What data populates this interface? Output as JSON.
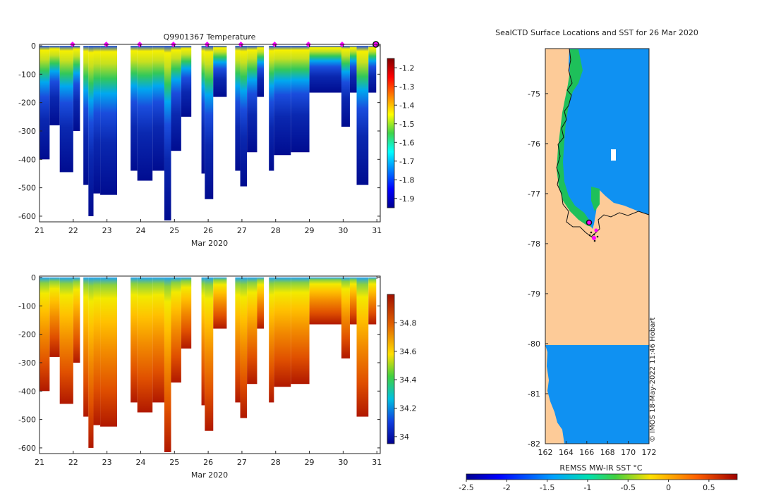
{
  "chart_data": [
    {
      "type": "heatmap",
      "title": "Q9901367  Temperature",
      "x_ticks": [
        "21",
        "22",
        "23",
        "24",
        "25",
        "26",
        "27",
        "28",
        "29",
        "30",
        "31"
      ],
      "x_values": [
        21,
        22,
        23,
        24,
        25,
        26,
        27,
        28,
        29,
        30,
        31
      ],
      "xlabel": "Mar 2020",
      "xlim": [
        21,
        31.1
      ],
      "y_ticks": [
        "0",
        "-100",
        "-200",
        "-300",
        "-400",
        "-500",
        "-600"
      ],
      "y_values": [
        0,
        -100,
        -200,
        -300,
        -400,
        -500,
        -600
      ],
      "ylim": [
        -620,
        5
      ],
      "colorbar_ticks": [
        "-1.2",
        "-1.3",
        "-1.4",
        "-1.5",
        "-1.6",
        "-1.7",
        "-1.8",
        "-1.9"
      ],
      "colorbar_values": [
        -1.2,
        -1.3,
        -1.4,
        -1.5,
        -1.6,
        -1.7,
        -1.8,
        -1.9
      ],
      "colorbar_range": [
        -1.95,
        -1.15
      ],
      "marker_days": [
        21.98,
        22.98,
        23.97,
        24.97,
        25.97,
        26.97,
        27.97,
        28.97,
        29.97
      ],
      "last_marker_day": 30.97,
      "profiles": [
        {
          "x0": 21.0,
          "x1": 21.3,
          "depth": 400
        },
        {
          "x0": 21.3,
          "x1": 21.6,
          "depth": 280
        },
        {
          "x0": 21.6,
          "x1": 22.0,
          "depth": 445
        },
        {
          "x0": 22.0,
          "x1": 22.2,
          "depth": 300
        },
        {
          "x0": 22.3,
          "x1": 22.45,
          "depth": 490
        },
        {
          "x0": 22.45,
          "x1": 22.6,
          "depth": 600
        },
        {
          "x0": 22.6,
          "x1": 22.8,
          "depth": 520
        },
        {
          "x0": 22.8,
          "x1": 23.3,
          "depth": 525
        },
        {
          "x0": 23.7,
          "x1": 23.9,
          "depth": 440
        },
        {
          "x0": 23.9,
          "x1": 24.35,
          "depth": 475
        },
        {
          "x0": 24.35,
          "x1": 24.7,
          "depth": 440
        },
        {
          "x0": 24.7,
          "x1": 24.9,
          "depth": 615
        },
        {
          "x0": 24.9,
          "x1": 25.2,
          "depth": 370
        },
        {
          "x0": 25.2,
          "x1": 25.5,
          "depth": 250
        },
        {
          "x0": 25.8,
          "x1": 25.9,
          "depth": 450
        },
        {
          "x0": 25.9,
          "x1": 26.15,
          "depth": 540
        },
        {
          "x0": 26.15,
          "x1": 26.55,
          "depth": 180
        },
        {
          "x0": 26.8,
          "x1": 26.95,
          "depth": 440
        },
        {
          "x0": 26.95,
          "x1": 27.15,
          "depth": 495
        },
        {
          "x0": 27.15,
          "x1": 27.45,
          "depth": 375
        },
        {
          "x0": 27.45,
          "x1": 27.65,
          "depth": 180
        },
        {
          "x0": 27.8,
          "x1": 27.95,
          "depth": 440
        },
        {
          "x0": 27.95,
          "x1": 28.45,
          "depth": 385
        },
        {
          "x0": 28.45,
          "x1": 29.0,
          "depth": 375
        },
        {
          "x0": 29.0,
          "x1": 29.95,
          "depth": 165
        },
        {
          "x0": 29.95,
          "x1": 30.2,
          "depth": 285
        },
        {
          "x0": 30.2,
          "x1": 30.4,
          "depth": 165
        },
        {
          "x0": 30.4,
          "x1": 30.75,
          "depth": 490
        },
        {
          "x0": 30.75,
          "x1": 30.98,
          "depth": 165
        }
      ]
    },
    {
      "type": "heatmap",
      "title": "",
      "x_ticks": [
        "21",
        "22",
        "23",
        "24",
        "25",
        "26",
        "27",
        "28",
        "29",
        "30",
        "31"
      ],
      "x_values": [
        21,
        22,
        23,
        24,
        25,
        26,
        27,
        28,
        29,
        30,
        31
      ],
      "xlabel": "Mar 2020",
      "xlim": [
        21,
        31.1
      ],
      "y_ticks": [
        "0",
        "-100",
        "-200",
        "-300",
        "-400",
        "-500",
        "-600"
      ],
      "y_values": [
        0,
        -100,
        -200,
        -300,
        -400,
        -500,
        -600
      ],
      "ylim": [
        -620,
        5
      ],
      "colorbar_ticks": [
        "34.8",
        "34.6",
        "34.4",
        "34.2",
        "34"
      ],
      "colorbar_values": [
        34.8,
        34.6,
        34.4,
        34.2,
        34.0
      ],
      "colorbar_range": [
        33.95,
        35.0
      ]
    },
    {
      "type": "map",
      "title": "SealCTD Surface Locations and SST for 26 Mar 2020",
      "x_ticks": [
        "162",
        "164",
        "166",
        "168",
        "170",
        "172"
      ],
      "x_values": [
        162,
        164,
        166,
        168,
        170,
        172
      ],
      "xlim": [
        162,
        172
      ],
      "y_ticks": [
        "-75",
        "-76",
        "-77",
        "-78",
        "-79",
        "-80",
        "-81",
        "-82"
      ],
      "y_values": [
        -75,
        -76,
        -77,
        -78,
        -79,
        -80,
        -81,
        -82
      ],
      "ylim": [
        -82,
        -74.1
      ],
      "colorbar_label": "REMSS MW-IR SST °C",
      "colorbar_ticks": [
        "-2.5",
        "-2",
        "-1.5",
        "-1",
        "-0.5",
        "0",
        "0.5"
      ],
      "colorbar_values": [
        -2.5,
        -2,
        -1.5,
        -1,
        -0.5,
        0,
        0.5
      ],
      "colorbar_range": [
        -2.5,
        0.85
      ],
      "credit": "© IMOS 18-May-2022 11:46 Hobart"
    }
  ]
}
